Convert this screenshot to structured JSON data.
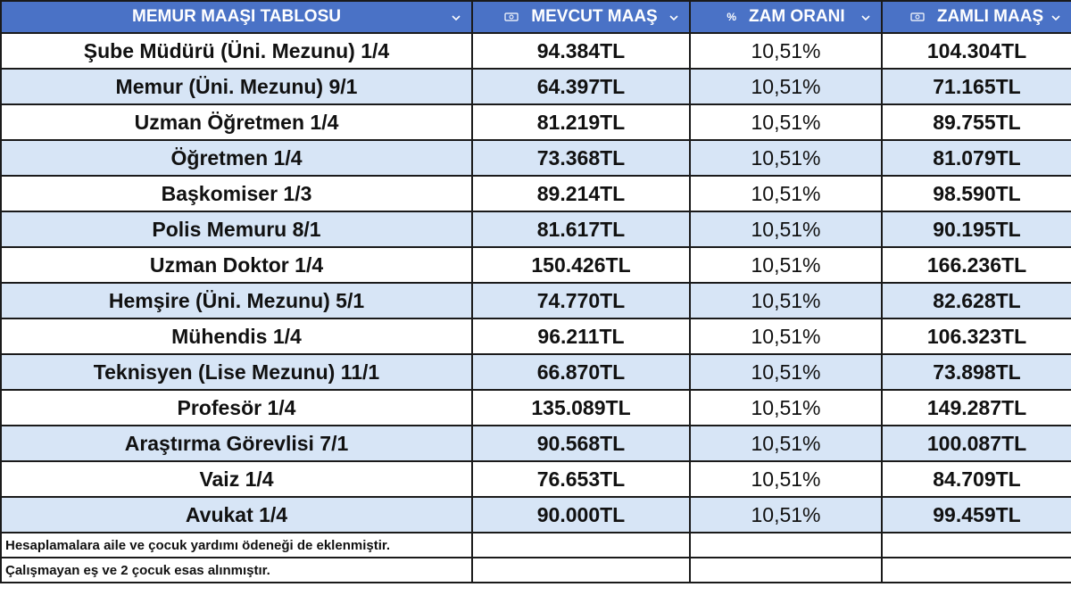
{
  "header": {
    "columns": [
      {
        "title": "MEMUR MAAŞI TABLOSU"
      },
      {
        "title": "MEVCUT MAAŞ"
      },
      {
        "title": "ZAM ORANI",
        "icon": "%"
      },
      {
        "title": "ZAMLI MAAŞ"
      }
    ]
  },
  "table": {
    "rows": [
      [
        "Şube Müdürü (Üni. Mezunu) 1/4",
        "94.384TL",
        "10,51%",
        "104.304TL"
      ],
      [
        "Memur (Üni. Mezunu) 9/1",
        "64.397TL",
        "10,51%",
        "71.165TL"
      ],
      [
        "Uzman Öğretmen 1/4",
        "81.219TL",
        "10,51%",
        "89.755TL"
      ],
      [
        "Öğretmen 1/4",
        "73.368TL",
        "10,51%",
        "81.079TL"
      ],
      [
        "Başkomiser 1/3",
        "89.214TL",
        "10,51%",
        "98.590TL"
      ],
      [
        "Polis Memuru 8/1",
        "81.617TL",
        "10,51%",
        "90.195TL"
      ],
      [
        "Uzman Doktor 1/4",
        "150.426TL",
        "10,51%",
        "166.236TL"
      ],
      [
        "Hemşire (Üni. Mezunu) 5/1",
        "74.770TL",
        "10,51%",
        "82.628TL"
      ],
      [
        "Mühendis 1/4",
        "96.211TL",
        "10,51%",
        "106.323TL"
      ],
      [
        "Teknisyen (Lise Mezunu) 11/1",
        "66.870TL",
        "10,51%",
        "73.898TL"
      ],
      [
        "Profesör 1/4",
        "135.089TL",
        "10,51%",
        "149.287TL"
      ],
      [
        "Araştırma Görevlisi 7/1",
        "90.568TL",
        "10,51%",
        "100.087TL"
      ],
      [
        "Vaiz 1/4",
        "76.653TL",
        "10,51%",
        "84.709TL"
      ],
      [
        "Avukat 1/4",
        "90.000TL",
        "10,51%",
        "99.459TL"
      ]
    ]
  },
  "footnotes": [
    "Hesaplamalara aile ve çocuk yardımı ödeneği de eklenmiştir.",
    "Çalışmayan eş ve 2 çocuk esas alınmıştır."
  ]
}
